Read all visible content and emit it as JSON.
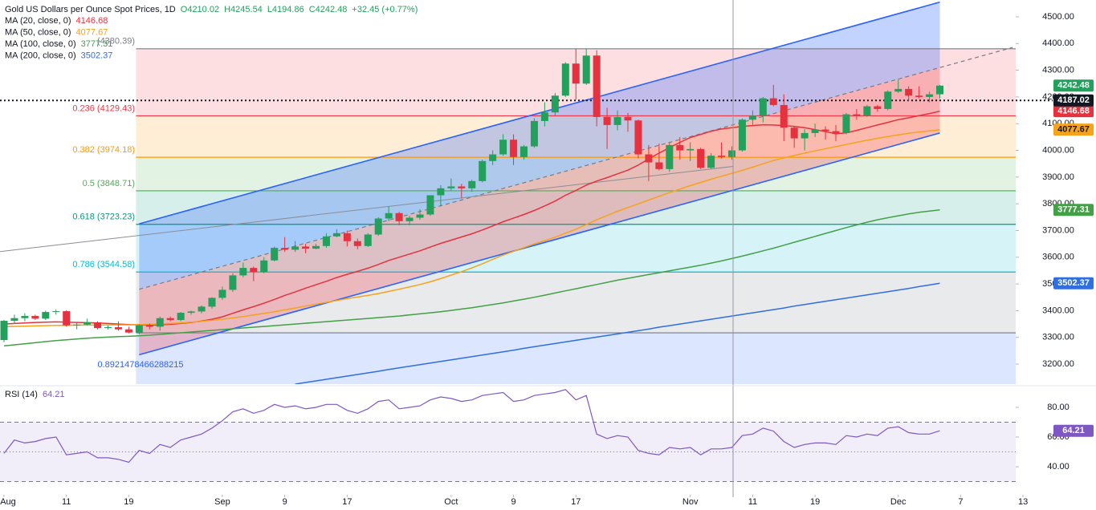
{
  "chart_data": {
    "type": "candlestick",
    "title": "Gold US Dollars per Ounce Spot Prices, 1D",
    "quote": [
      "O4210.02",
      "H4245.54",
      "L4194.86",
      "C4242.48",
      "+32.45 (+0.77%)"
    ],
    "up_color": "#22a05c",
    "down_color": "#e5323e",
    "categories": [
      "Aug",
      null,
      null,
      null,
      null,
      null,
      "11",
      null,
      null,
      null,
      null,
      null,
      "19",
      null,
      null,
      null,
      null,
      null,
      null,
      null,
      null,
      "Sep",
      null,
      null,
      null,
      null,
      null,
      "9",
      null,
      null,
      null,
      null,
      null,
      "17",
      null,
      null,
      null,
      null,
      null,
      null,
      null,
      null,
      null,
      "Oct",
      null,
      null,
      null,
      null,
      null,
      "9",
      null,
      null,
      null,
      null,
      null,
      "17",
      null,
      null,
      null,
      null,
      null,
      null,
      null,
      null,
      null,
      null,
      "Nov",
      null,
      null,
      null,
      null,
      null,
      "11",
      null,
      null,
      null,
      null,
      null,
      "19",
      null,
      null,
      null,
      null,
      null,
      null,
      null,
      "Dec",
      null,
      null,
      null,
      null,
      null,
      "7",
      null,
      null,
      null,
      null,
      null,
      "13"
    ],
    "ohlc": [
      [
        3290,
        3365,
        3282,
        3362
      ],
      [
        3362,
        3385,
        3350,
        3372
      ],
      [
        3372,
        3390,
        3360,
        3380
      ],
      [
        3380,
        3385,
        3365,
        3370
      ],
      [
        3370,
        3400,
        3365,
        3395
      ],
      [
        3395,
        3405,
        3385,
        3398
      ],
      [
        3398,
        3402,
        3340,
        3345
      ],
      [
        3345,
        3355,
        3330,
        3348
      ],
      [
        3348,
        3370,
        3345,
        3356
      ],
      [
        3356,
        3360,
        3330,
        3335
      ],
      [
        3335,
        3345,
        3330,
        3338
      ],
      [
        3338,
        3360,
        3325,
        3330
      ],
      [
        3330,
        3340,
        3315,
        3318
      ],
      [
        3318,
        3350,
        3312,
        3345
      ],
      [
        3345,
        3352,
        3330,
        3340
      ],
      [
        3340,
        3378,
        3325,
        3372
      ],
      [
        3372,
        3378,
        3360,
        3365
      ],
      [
        3365,
        3395,
        3360,
        3392
      ],
      [
        3392,
        3400,
        3385,
        3397
      ],
      [
        3397,
        3420,
        3390,
        3415
      ],
      [
        3415,
        3450,
        3408,
        3448
      ],
      [
        3448,
        3490,
        3440,
        3478
      ],
      [
        3478,
        3540,
        3470,
        3532
      ],
      [
        3532,
        3580,
        3525,
        3560
      ],
      [
        3560,
        3565,
        3510,
        3545
      ],
      [
        3545,
        3600,
        3540,
        3588
      ],
      [
        3588,
        3640,
        3585,
        3635
      ],
      [
        3635,
        3675,
        3620,
        3628
      ],
      [
        3628,
        3660,
        3620,
        3640
      ],
      [
        3640,
        3650,
        3615,
        3632
      ],
      [
        3632,
        3650,
        3630,
        3642
      ],
      [
        3642,
        3690,
        3635,
        3678
      ],
      [
        3678,
        3705,
        3675,
        3690
      ],
      [
        3690,
        3700,
        3640,
        3660
      ],
      [
        3660,
        3670,
        3630,
        3642
      ],
      [
        3642,
        3690,
        3638,
        3685
      ],
      [
        3685,
        3750,
        3680,
        3745
      ],
      [
        3745,
        3790,
        3735,
        3765
      ],
      [
        3765,
        3770,
        3720,
        3735
      ],
      [
        3735,
        3755,
        3720,
        3748
      ],
      [
        3748,
        3780,
        3740,
        3760
      ],
      [
        3760,
        3830,
        3755,
        3832
      ],
      [
        3832,
        3870,
        3790,
        3858
      ],
      [
        3858,
        3895,
        3850,
        3865
      ],
      [
        3865,
        3875,
        3820,
        3858
      ],
      [
        3858,
        3890,
        3845,
        3885
      ],
      [
        3885,
        3965,
        3880,
        3960
      ],
      [
        3960,
        4000,
        3945,
        3985
      ],
      [
        3985,
        4060,
        3980,
        4040
      ],
      [
        4040,
        4060,
        3945,
        3975
      ],
      [
        3975,
        4020,
        3965,
        4015
      ],
      [
        4015,
        4120,
        4010,
        4110
      ],
      [
        4110,
        4180,
        4090,
        4142
      ],
      [
        4142,
        4215,
        4130,
        4205
      ],
      [
        4205,
        4330,
        4200,
        4325
      ],
      [
        4325,
        4380,
        4190,
        4250
      ],
      [
        4250,
        4380,
        4245,
        4355
      ],
      [
        4355,
        4375,
        4090,
        4125
      ],
      [
        4125,
        4160,
        4005,
        4095
      ],
      [
        4095,
        4150,
        4075,
        4125
      ],
      [
        4125,
        4140,
        4070,
        4112
      ],
      [
        4112,
        4115,
        3970,
        3985
      ],
      [
        3985,
        4020,
        3885,
        3955
      ],
      [
        3955,
        4025,
        3925,
        3930
      ],
      [
        3930,
        4030,
        3920,
        4020
      ],
      [
        4020,
        4050,
        3965,
        4000
      ],
      [
        4000,
        4030,
        3960,
        4005
      ],
      [
        4005,
        4010,
        3930,
        3935
      ],
      [
        3935,
        3990,
        3930,
        3980
      ],
      [
        3980,
        4030,
        3970,
        3975
      ],
      [
        3975,
        4015,
        3965,
        4000
      ],
      [
        4000,
        4120,
        3995,
        4115
      ],
      [
        4115,
        4150,
        4090,
        4130
      ],
      [
        4130,
        4200,
        4105,
        4195
      ],
      [
        4195,
        4245,
        4165,
        4170
      ],
      [
        4170,
        4210,
        4035,
        4085
      ],
      [
        4085,
        4090,
        4010,
        4045
      ],
      [
        4045,
        4080,
        4000,
        4065
      ],
      [
        4065,
        4100,
        4050,
        4078
      ],
      [
        4078,
        4090,
        4040,
        4072
      ],
      [
        4072,
        4095,
        4035,
        4065
      ],
      [
        4065,
        4140,
        4060,
        4135
      ],
      [
        4135,
        4155,
        4115,
        4130
      ],
      [
        4130,
        4170,
        4125,
        4165
      ],
      [
        4165,
        4170,
        4145,
        4155
      ],
      [
        4155,
        4225,
        4150,
        4220
      ],
      [
        4220,
        4265,
        4215,
        4230
      ],
      [
        4230,
        4240,
        4185,
        4205
      ],
      [
        4205,
        4240,
        4195,
        4200
      ],
      [
        4200,
        4220,
        4180,
        4210.02
      ],
      [
        4210.02,
        4245.54,
        4194.86,
        4242.48
      ],
      null,
      null,
      null,
      null,
      null,
      null,
      null,
      null
    ],
    "series": [
      {
        "name": "MA (20, close, 0)",
        "color": "#e5323e",
        "values": [
          3350,
          3352,
          3354,
          3356,
          3357,
          3358,
          3357,
          3356,
          3355,
          3354,
          3352,
          3350,
          3348,
          3347,
          3346,
          3347,
          3349,
          3352,
          3356,
          3361,
          3368,
          3377,
          3390,
          3403,
          3415,
          3428,
          3442,
          3457,
          3470,
          3484,
          3497,
          3510,
          3524,
          3536,
          3547,
          3559,
          3573,
          3588,
          3600,
          3612,
          3624,
          3638,
          3652,
          3664,
          3676,
          3688,
          3702,
          3717,
          3733,
          3746,
          3760,
          3775,
          3792,
          3810,
          3832,
          3850,
          3870,
          3885,
          3898,
          3912,
          3926,
          3945,
          3968,
          3990,
          4010,
          4030,
          4048,
          4060,
          4072,
          4080,
          4085,
          4090,
          4093,
          4096,
          4095,
          4093,
          4090,
          4085,
          4078,
          4070,
          4062,
          4066,
          4075,
          4085,
          4095,
          4105,
          4115,
          4122,
          4130,
          4138,
          4146.68,
          null,
          null,
          null,
          null,
          null,
          null,
          null,
          null
        ]
      },
      {
        "name": "MA (50, close, 0)",
        "color": "#f7a21b",
        "values": [
          3340,
          3341,
          3342,
          3343,
          3344,
          3345,
          3345,
          3346,
          3346,
          3346,
          3347,
          3347,
          3347,
          3348,
          3349,
          3350,
          3352,
          3354,
          3357,
          3360,
          3364,
          3368,
          3373,
          3378,
          3384,
          3390,
          3396,
          3403,
          3410,
          3417,
          3424,
          3431,
          3438,
          3445,
          3451,
          3457,
          3464,
          3472,
          3480,
          3489,
          3498,
          3508,
          3520,
          3533,
          3546,
          3560,
          3575,
          3592,
          3608,
          3622,
          3636,
          3650,
          3662,
          3675,
          3690,
          3705,
          3722,
          3740,
          3756,
          3772,
          3786,
          3800,
          3814,
          3828,
          3842,
          3855,
          3868,
          3880,
          3892,
          3903,
          3914,
          3925,
          3937,
          3950,
          3962,
          3972,
          3981,
          3990,
          3998,
          4006,
          4014,
          4022,
          4030,
          4038,
          4045,
          4052,
          4058,
          4064,
          4069,
          4073,
          4077.67,
          null,
          null,
          null,
          null,
          null,
          null,
          null,
          null
        ]
      },
      {
        "name": "MA (100, close, 0)",
        "color": "#43a047",
        "values": [
          3268,
          3272,
          3276,
          3280,
          3284,
          3288,
          3291,
          3294,
          3297,
          3299,
          3301,
          3303,
          3304,
          3306,
          3308,
          3311,
          3314,
          3317,
          3320,
          3323,
          3326,
          3329,
          3332,
          3335,
          3338,
          3341,
          3344,
          3347,
          3350,
          3353,
          3356,
          3359,
          3362,
          3365,
          3368,
          3371,
          3374,
          3377,
          3380,
          3384,
          3388,
          3392,
          3396,
          3401,
          3406,
          3411,
          3417,
          3423,
          3429,
          3436,
          3443,
          3450,
          3458,
          3466,
          3474,
          3482,
          3490,
          3498,
          3506,
          3514,
          3521,
          3528,
          3535,
          3542,
          3549,
          3556,
          3563,
          3570,
          3578,
          3586,
          3595,
          3604,
          3614,
          3624,
          3634,
          3645,
          3656,
          3667,
          3678,
          3689,
          3700,
          3711,
          3721,
          3731,
          3740,
          3748,
          3755,
          3762,
          3768,
          3773,
          3777.31,
          null,
          null,
          null,
          null,
          null,
          null,
          null,
          null
        ]
      },
      {
        "name": "MA (200, close, 0)",
        "color": "#2f6fdf",
        "values": [
          null,
          null,
          null,
          null,
          null,
          null,
          null,
          null,
          null,
          null,
          null,
          null,
          null,
          null,
          null,
          null,
          null,
          null,
          null,
          null,
          null,
          null,
          null,
          null,
          null,
          null,
          null,
          null,
          3125,
          3131,
          3137,
          3143,
          3149,
          3155,
          3161,
          3167,
          3173,
          3180,
          3186,
          3192,
          3198,
          3204,
          3210,
          3216,
          3222,
          3228,
          3234,
          3240,
          3246,
          3252,
          3259,
          3265,
          3271,
          3277,
          3283,
          3289,
          3295,
          3301,
          3307,
          3313,
          3319,
          3325,
          3331,
          3338,
          3344,
          3350,
          3356,
          3362,
          3368,
          3374,
          3380,
          3386,
          3392,
          3398,
          3404,
          3410,
          3417,
          3423,
          3429,
          3435,
          3441,
          3447,
          3453,
          3459,
          3465,
          3471,
          3477,
          3483,
          3490,
          3496,
          3502.37,
          null,
          null,
          null,
          null,
          null,
          null,
          null,
          null
        ]
      }
    ],
    "price_line": {
      "value": 4187.02,
      "color": "#131722"
    },
    "ylim": [
      3125,
      4563
    ],
    "yticks": [
      {
        "value": 3200,
        "label": "3200.00"
      },
      {
        "value": 3300,
        "label": "3300.00"
      },
      {
        "value": 3400,
        "label": "3400.00"
      },
      {
        "value": 3500,
        "label": "3500.00"
      },
      {
        "value": 3600,
        "label": "3600.00"
      },
      {
        "value": 3700,
        "label": "3700.00"
      },
      {
        "value": 3800,
        "label": "3800.00"
      },
      {
        "value": 3900,
        "label": "3900.00"
      },
      {
        "value": 4000,
        "label": "4000.00"
      },
      {
        "value": 4100,
        "label": "4100.00"
      },
      {
        "value": 4200,
        "label": "4200.00"
      },
      {
        "value": 4300,
        "label": "4300.00"
      },
      {
        "value": 4400,
        "label": "4400.00"
      },
      {
        "value": 4500,
        "label": "4500.00"
      }
    ],
    "fib_levels": [
      {
        "label": "(4380.39)",
        "value": 4380.39,
        "color": "#787b86"
      },
      {
        "label": "0.236 (4129.43)",
        "value": 4129.43,
        "color": "#f23645"
      },
      {
        "label": "0.382 (3974.18)",
        "value": 3974.18,
        "color": "#ff9800"
      },
      {
        "label": "0.5 (3848.71)",
        "value": 3848.71,
        "color": "#4caf50"
      },
      {
        "label": "0.618 (3723.23)",
        "value": 3723.23,
        "color": "#089981"
      },
      {
        "label": "0.786 (3544.58)",
        "value": 3544.58,
        "color": "#00bcd4"
      },
      {
        "value": 3316.98,
        "color": "#787b86"
      }
    ],
    "fib_extra": {
      "text": "0.8921478466288215",
      "color": "#2962ff"
    },
    "channel": {
      "upper": [
        3725,
        4555
      ],
      "middle": [
        3480,
        4310
      ],
      "lower": [
        3235,
        4065
      ],
      "color": "#2962ff",
      "upper_fill": "#2962ff",
      "lower_fill": "#f23645"
    },
    "trendline": {
      "values": [
        3621,
        3940
      ],
      "color": "#8a8d96"
    },
    "rsi": {
      "name": "RSI (14)",
      "color": "#7e57c2",
      "values": [
        49,
        58,
        56,
        57,
        59,
        60,
        48,
        49,
        50,
        46,
        46,
        45,
        43,
        51,
        49,
        55,
        53,
        58,
        60,
        62,
        66,
        71,
        77,
        79,
        76,
        78,
        82,
        80,
        81,
        79,
        80,
        82,
        82,
        78,
        76,
        79,
        84,
        85,
        79,
        80,
        81,
        85,
        87,
        86,
        84,
        85,
        88,
        89,
        90,
        84,
        85,
        88,
        89,
        90,
        92,
        85,
        88,
        62,
        59,
        61,
        60,
        51,
        49,
        48,
        53,
        52,
        53,
        48,
        52,
        52,
        53,
        61,
        62,
        66,
        64,
        57,
        53,
        55,
        56,
        56,
        55,
        61,
        60,
        62,
        61,
        66,
        67,
        63,
        62,
        62,
        64.21,
        null,
        null,
        null,
        null,
        null,
        null,
        null,
        null
      ],
      "ylim": [
        19.5,
        93.5
      ],
      "yticks": [
        {
          "value": 40,
          "label": "40.00"
        },
        {
          "value": 60,
          "label": "60.00"
        },
        {
          "value": 80,
          "label": "80.00"
        }
      ],
      "bands": [
        70,
        50,
        30
      ]
    }
  }
}
